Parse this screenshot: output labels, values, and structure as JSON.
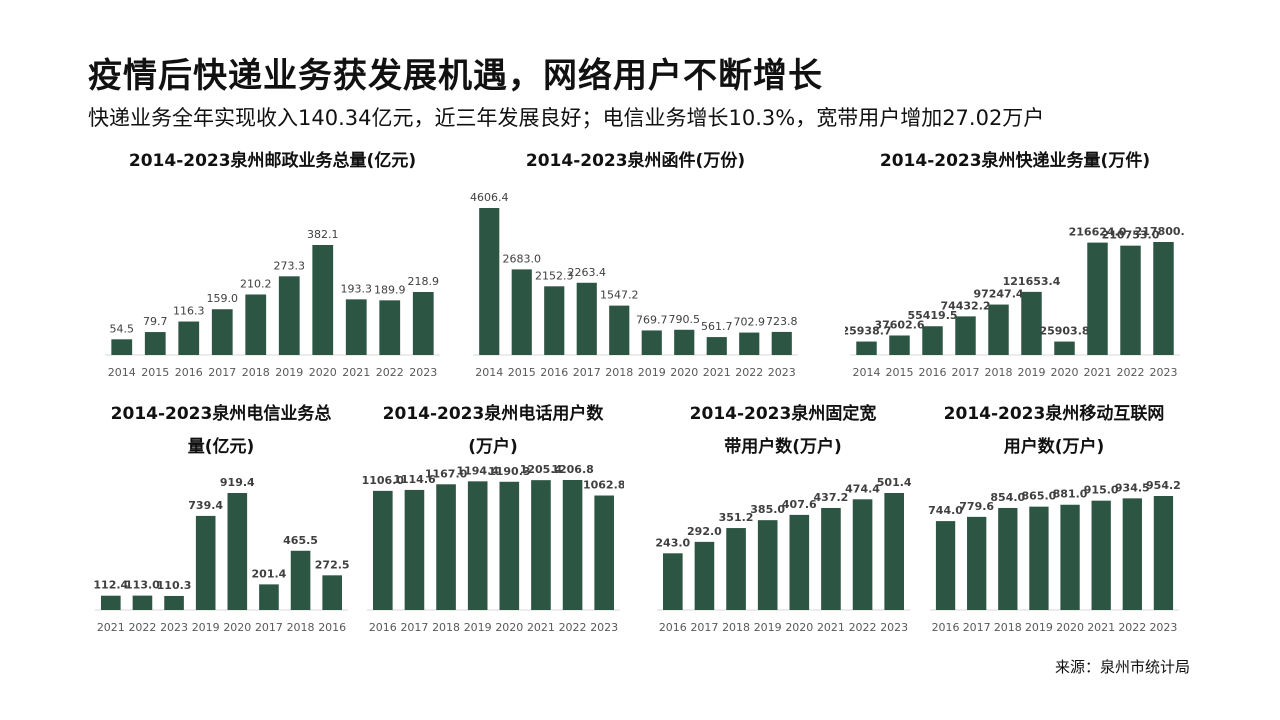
{
  "headline": "疫情后快递业务获发展机遇，网络用户不断增长",
  "subtitle": "快递业务全年实现收入140.34亿元，近三年发展良好；电信业务增长10.3%，宽带用户增加27.02万户",
  "source": "来源：泉州市统计局",
  "colors": {
    "bar": "#2d5543",
    "axis": "#d9d9d9",
    "label": "#595959",
    "value": "#404040"
  },
  "chart_data": [
    {
      "type": "bar",
      "title": "2014-2023泉州邮政业务总量(亿元)",
      "categories": [
        "2014",
        "2015",
        "2016",
        "2017",
        "2018",
        "2019",
        "2020",
        "2021",
        "2022",
        "2023"
      ],
      "values": [
        54.5,
        79.7,
        116.3,
        159.0,
        210.2,
        273.3,
        382.1,
        193.3,
        189.9,
        218.9
      ],
      "value_labels": [
        "54.5",
        "79.7",
        "116.3",
        "159.0",
        "210.2",
        "273.3",
        "382.1",
        "193.3",
        "189.9",
        "218.9"
      ]
    },
    {
      "type": "bar",
      "title": "2014-2023泉州函件(万份)",
      "categories": [
        "2014",
        "2015",
        "2016",
        "2017",
        "2018",
        "2019",
        "2020",
        "2021",
        "2022",
        "2023"
      ],
      "values": [
        4606.4,
        2683.0,
        2152.3,
        2263.4,
        1547.2,
        769.7,
        790.5,
        561.7,
        702.9,
        723.8
      ],
      "value_labels": [
        "4606.4",
        "2683.0",
        "2152.3",
        "2263.4",
        "1547.2",
        "769.7",
        "790.5",
        "561.7",
        "702.9",
        "723.8"
      ]
    },
    {
      "type": "bar",
      "title": "2014-2023泉州快递业务量(万件)",
      "categories": [
        "2014",
        "2015",
        "2016",
        "2017",
        "2018",
        "2019",
        "2020",
        "2021",
        "2022",
        "2023"
      ],
      "values": [
        25938.7,
        37602.6,
        55419.5,
        74432.2,
        97247.4,
        121653.4,
        25903.8,
        216624.0,
        210753.0,
        217800.0
      ],
      "value_labels": [
        "25938.7",
        "37602.6",
        "55419.5",
        "74432.2",
        "97247.4",
        "121653.4",
        "25903.8",
        "216624.0",
        "210753.0",
        "217800.0"
      ]
    },
    {
      "type": "bar",
      "title": "2014-2023泉州电信业务总量(亿元)",
      "categories": [
        "2021",
        "2022",
        "2023",
        "2019",
        "2020",
        "2017",
        "2018",
        "2016"
      ],
      "values": [
        112.4,
        113.0,
        110.3,
        739.4,
        919.4,
        201.4,
        465.5,
        272.5
      ],
      "value_labels": [
        "112.4",
        "113.0",
        "110.3",
        "739.4",
        "919.4",
        "201.4",
        "465.5",
        "272.5"
      ]
    },
    {
      "type": "bar",
      "title": "2014-2023泉州电话用户数(万户)",
      "categories": [
        "2016",
        "2017",
        "2018",
        "2019",
        "2020",
        "2021",
        "2022",
        "2023"
      ],
      "values": [
        1106.0,
        1114.6,
        1167.0,
        1194.4,
        1190.3,
        1205.4,
        1206.8,
        1062.8
      ],
      "value_labels": [
        "1106.0",
        "1114.6",
        "1167.0",
        "1194.4",
        "1190.3",
        "1205.4",
        "1206.8",
        "1062.8"
      ]
    },
    {
      "type": "bar",
      "title": "2014-2023泉州固定宽带用户数(万户)",
      "categories": [
        "2016",
        "2017",
        "2018",
        "2019",
        "2020",
        "2021",
        "2022",
        "2023"
      ],
      "values": [
        243.0,
        292.0,
        351.2,
        385.0,
        407.6,
        437.2,
        474.4,
        501.4
      ],
      "value_labels": [
        "243.0",
        "292.0",
        "351.2",
        "385.0",
        "407.6",
        "437.2",
        "474.4",
        "501.4"
      ]
    },
    {
      "type": "bar",
      "title": "2014-2023泉州移动互联网用户数(万户)",
      "categories": [
        "2016",
        "2017",
        "2018",
        "2019",
        "2020",
        "2021",
        "2022",
        "2023"
      ],
      "values": [
        744.0,
        779.6,
        854.0,
        865.0,
        881.0,
        915.0,
        934.5,
        954.2
      ],
      "value_labels": [
        "744.0",
        "779.6",
        "854.0",
        "865.0",
        "881.0",
        "915.0",
        "934.5",
        "954.2"
      ]
    }
  ]
}
